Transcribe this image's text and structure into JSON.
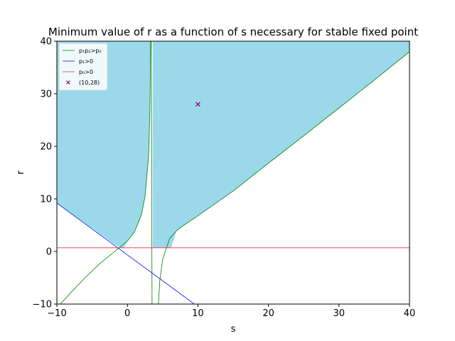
{
  "chart_data": {
    "type": "line",
    "title": "Minimum value of r as a function of s necessary for stable fixed point",
    "xlabel": "s",
    "ylabel": "r",
    "xlim": [
      -10,
      40
    ],
    "ylim": [
      -10,
      40
    ],
    "xticks": [
      -10,
      0,
      10,
      20,
      30,
      40
    ],
    "yticks": [
      -10,
      0,
      10,
      20,
      30,
      40
    ],
    "xtick_labels": [
      "−10",
      "0",
      "10",
      "20",
      "30",
      "40"
    ],
    "ytick_labels": [
      "−10",
      "0",
      "10",
      "20",
      "30",
      "40"
    ],
    "grid": false,
    "legend_position": "upper-left",
    "colors": {
      "fill": "#9bd9ea",
      "p1p2": "#008000",
      "p1": "#0000ff",
      "p0": "#e0303a",
      "point": "#800080"
    },
    "series": [
      {
        "name": "p₁p₂>p₀",
        "color": "#008000",
        "branches": [
          {
            "x": [
              -10,
              -8,
              -6,
              -4,
              -2,
              -1,
              0,
              1,
              2,
              2.5,
              3,
              3.2,
              3.3
            ],
            "y": [
              -10.7,
              -7.8,
              -5.0,
              -2.4,
              -0.2,
              0.9,
              2.0,
              3.7,
              7.0,
              10.5,
              18.0,
              27.0,
              40.0
            ]
          },
          {
            "x": [
              3.4,
              3.45,
              3.5
            ],
            "y": [
              40,
              10,
              -10
            ]
          },
          {
            "x": [
              4.4,
              4.6,
              5,
              6,
              7,
              8,
              10,
              15,
              20,
              25,
              30,
              35,
              40
            ],
            "y": [
              -10.0,
              -5.5,
              -1.5,
              2.5,
              4.0,
              5.0,
              6.8,
              11.5,
              16.8,
              22.0,
              27.3,
              32.6,
              38.0
            ]
          }
        ]
      },
      {
        "name": "p₁>0",
        "color": "#0000ff",
        "x": [
          -10,
          10
        ],
        "y": [
          9.2,
          -10.5
        ]
      },
      {
        "name": "p₀>0",
        "color": "#e0303a",
        "x": [
          -10,
          40
        ],
        "y": [
          0.7,
          0.7
        ]
      }
    ],
    "points": [
      {
        "label": "(10,28)",
        "x": 10,
        "y": 28,
        "color": "#800080",
        "marker": "x"
      }
    ],
    "stable_regions": [
      {
        "x": [
          -10,
          -8,
          -6,
          -4,
          -2,
          -1,
          -0.5,
          0,
          1,
          2,
          2.5,
          3,
          3.2,
          3.3,
          3.3,
          -10
        ],
        "y": [
          9.2,
          7.3,
          5.4,
          3.4,
          1.5,
          0.7,
          0.7,
          2.0,
          3.7,
          7.0,
          10.5,
          18.0,
          27.0,
          40.0,
          40.0,
          40.0
        ]
      },
      {
        "x": [
          3.6,
          40,
          40,
          35,
          30,
          25,
          20,
          15,
          10,
          8,
          7,
          6.2,
          3.6
        ],
        "y": [
          40,
          40,
          38.0,
          32.6,
          27.3,
          22.0,
          16.8,
          11.5,
          6.8,
          5.0,
          4.0,
          0.7,
          0.7
        ]
      }
    ]
  }
}
